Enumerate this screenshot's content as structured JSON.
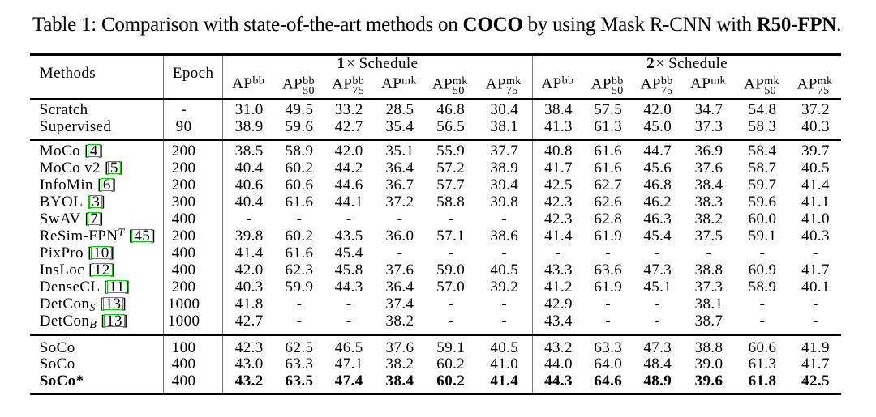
{
  "caption": {
    "segments": [
      {
        "text": "Table 1: Comparison with state-of-the-art methods on ",
        "bold": false
      },
      {
        "text": "COCO",
        "bold": true
      },
      {
        "text": " by using Mask R-CNN with ",
        "bold": false
      },
      {
        "text": "R50-FPN",
        "bold": true
      },
      {
        "text": ".",
        "bold": false
      }
    ]
  },
  "table": {
    "corner_headers": {
      "methods": "Methods",
      "epoch": "Epoch"
    },
    "schedule_groups": [
      {
        "num": "1",
        "times": "×",
        "word": "Schedule"
      },
      {
        "num": "2",
        "times": "×",
        "word": "Schedule"
      }
    ],
    "metric_headers": [
      {
        "base": "AP",
        "sup": "bb",
        "sub": ""
      },
      {
        "base": "AP",
        "sup": "bb",
        "sub": "50"
      },
      {
        "base": "AP",
        "sup": "bb",
        "sub": "75"
      },
      {
        "base": "AP",
        "sup": "mk",
        "sub": ""
      },
      {
        "base": "AP",
        "sup": "mk",
        "sub": "50"
      },
      {
        "base": "AP",
        "sup": "mk",
        "sub": "75"
      }
    ],
    "colors": {
      "cite_border": "#00c800",
      "rule": "#000000",
      "vertical_rule": "#767676",
      "text": "#000000"
    },
    "groups": [
      {
        "name": "baseline",
        "rows": [
          {
            "method": {
              "name": "Scratch"
            },
            "epoch": "-",
            "values": [
              "31.0",
              "49.5",
              "33.2",
              "28.5",
              "46.8",
              "30.4",
              "38.4",
              "57.5",
              "42.0",
              "34.7",
              "54.8",
              "37.2"
            ]
          },
          {
            "method": {
              "name": "Supervised"
            },
            "epoch": "90",
            "values": [
              "38.9",
              "59.6",
              "42.7",
              "35.4",
              "56.5",
              "38.1",
              "41.3",
              "61.3",
              "45.0",
              "37.3",
              "58.3",
              "40.3"
            ]
          }
        ]
      },
      {
        "name": "pretrain",
        "rows": [
          {
            "method": {
              "name": "MoCo",
              "cite": "4"
            },
            "epoch": "200",
            "values": [
              "38.5",
              "58.9",
              "42.0",
              "35.1",
              "55.9",
              "37.7",
              "40.8",
              "61.6",
              "44.7",
              "36.9",
              "58.4",
              "39.7"
            ]
          },
          {
            "method": {
              "name": "MoCo v2",
              "cite": "5"
            },
            "epoch": "200",
            "values": [
              "40.4",
              "60.2",
              "44.2",
              "36.4",
              "57.2",
              "38.9",
              "41.7",
              "61.6",
              "45.6",
              "37.6",
              "58.7",
              "40.5"
            ]
          },
          {
            "method": {
              "name": "InfoMin",
              "cite": "6"
            },
            "epoch": "200",
            "values": [
              "40.6",
              "60.6",
              "44.6",
              "36.7",
              "57.7",
              "39.4",
              "42.5",
              "62.7",
              "46.8",
              "38.4",
              "59.7",
              "41.4"
            ]
          },
          {
            "method": {
              "name": "BYOL",
              "cite": "3"
            },
            "epoch": "300",
            "values": [
              "40.4",
              "61.6",
              "44.1",
              "37.2",
              "58.8",
              "39.8",
              "42.3",
              "62.6",
              "46.2",
              "38.3",
              "59.6",
              "41.1"
            ]
          },
          {
            "method": {
              "name": "SwAV",
              "cite": "7"
            },
            "epoch": "400",
            "values": [
              "-",
              "-",
              "-",
              "-",
              "-",
              "-",
              "42.3",
              "62.8",
              "46.3",
              "38.2",
              "60.0",
              "41.0"
            ]
          },
          {
            "method": {
              "name": "ReSim-FPN",
              "sup": "T",
              "cite": "45"
            },
            "epoch": "200",
            "values": [
              "39.8",
              "60.2",
              "43.5",
              "36.0",
              "57.1",
              "38.6",
              "41.4",
              "61.9",
              "45.4",
              "37.5",
              "59.1",
              "40.3"
            ]
          },
          {
            "method": {
              "name": "PixPro",
              "cite": "10"
            },
            "epoch": "400",
            "values": [
              "41.4",
              "61.6",
              "45.4",
              "-",
              "-",
              "-",
              "-",
              "-",
              "-",
              "-",
              "-",
              "-"
            ]
          },
          {
            "method": {
              "name": "InsLoc",
              "cite": "12"
            },
            "epoch": "400",
            "values": [
              "42.0",
              "62.3",
              "45.8",
              "37.6",
              "59.0",
              "40.5",
              "43.3",
              "63.6",
              "47.3",
              "38.8",
              "60.9",
              "41.7"
            ]
          },
          {
            "method": {
              "name": "DenseCL",
              "cite": "11"
            },
            "epoch": "200",
            "values": [
              "40.3",
              "59.9",
              "44.3",
              "36.4",
              "57.0",
              "39.2",
              "41.2",
              "61.9",
              "45.1",
              "37.3",
              "58.9",
              "40.1"
            ]
          },
          {
            "method": {
              "name": "DetCon",
              "sub": "S",
              "cite": "13"
            },
            "epoch": "1000",
            "values": [
              "41.8",
              "-",
              "-",
              "37.4",
              "-",
              "-",
              "42.9",
              "-",
              "-",
              "38.1",
              "-",
              "-"
            ]
          },
          {
            "method": {
              "name": "DetCon",
              "sub": "B",
              "cite": "13"
            },
            "epoch": "1000",
            "values": [
              "42.7",
              "-",
              "-",
              "38.2",
              "-",
              "-",
              "43.4",
              "-",
              "-",
              "38.7",
              "-",
              "-"
            ]
          }
        ]
      },
      {
        "name": "soco",
        "rows": [
          {
            "method": {
              "name": "SoCo"
            },
            "epoch": "100",
            "values": [
              "42.3",
              "62.5",
              "46.5",
              "37.6",
              "59.1",
              "40.5",
              "43.2",
              "63.3",
              "47.3",
              "38.8",
              "60.6",
              "41.9"
            ]
          },
          {
            "method": {
              "name": "SoCo"
            },
            "epoch": "400",
            "values": [
              "43.0",
              "63.3",
              "47.1",
              "38.2",
              "60.2",
              "41.0",
              "44.0",
              "64.0",
              "48.4",
              "39.0",
              "61.3",
              "41.7"
            ]
          },
          {
            "method": {
              "name": "SoCo*"
            },
            "epoch": "400",
            "bold": true,
            "values": [
              "43.2",
              "63.5",
              "47.4",
              "38.4",
              "60.2",
              "41.4",
              "44.3",
              "64.6",
              "48.9",
              "39.6",
              "61.8",
              "42.5"
            ]
          }
        ]
      }
    ]
  }
}
